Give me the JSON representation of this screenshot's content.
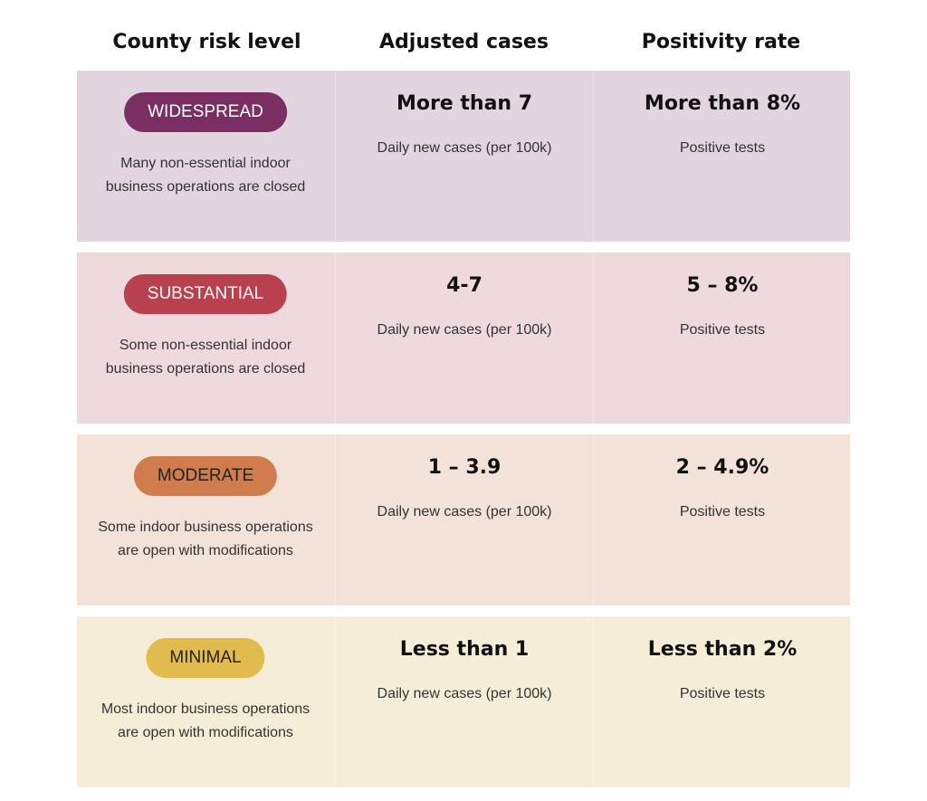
{
  "header": {
    "columns": [
      "County risk level",
      "Adjusted cases",
      "Positivity rate"
    ]
  },
  "rows": [
    {
      "badge": "WIDESPREAD",
      "description": [
        "Many non-essential indoor",
        "business operations are closed"
      ],
      "cases": "More than 7",
      "cases_note": "Daily new cases (per 100k)",
      "positivity": "More than 8%",
      "positivity_note": "Positive tests"
    },
    {
      "badge": "SUBSTANTIAL",
      "description": [
        "Some non-essential indoor",
        "business operations are closed"
      ],
      "cases": "4-7",
      "cases_note": "Daily new cases (per 100k)",
      "positivity": "5 – 8%",
      "positivity_note": "Positive tests"
    },
    {
      "badge": "MODERATE",
      "description": [
        "Some indoor business operations",
        "are open with modifications"
      ],
      "cases": "1 – 3.9",
      "cases_note": "Daily new cases (per 100k)",
      "positivity": "2 – 4.9%",
      "positivity_note": "Positive tests"
    },
    {
      "badge": "MINIMAL",
      "description": [
        "Most indoor business operations",
        "are open with modifications"
      ],
      "cases": "Less than 1",
      "cases_note": "Daily new cases (per 100k)",
      "positivity": "Less than 2%",
      "positivity_note": "Positive tests"
    }
  ]
}
